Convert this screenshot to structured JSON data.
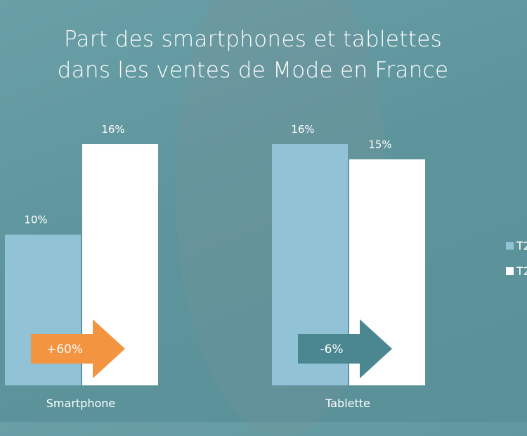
{
  "title_line1": "Part des smartphones et tablettes",
  "title_line2": "dans les ventes de Mode en France",
  "chart_data": {
    "type": "bar",
    "title": "Part des smartphones et tablettes dans les ventes de Mode en France",
    "categories": [
      "Smartphone",
      "Tablette"
    ],
    "series": [
      {
        "name": "T2",
        "color": "#92c2d6",
        "values": [
          10,
          16
        ]
      },
      {
        "name": "T2",
        "color": "#ffffff",
        "values": [
          16,
          15
        ]
      }
    ],
    "value_labels": [
      [
        "10%",
        "16%"
      ],
      [
        "16%",
        "15%"
      ]
    ],
    "annotations": [
      {
        "category": "Smartphone",
        "text": "+60%",
        "color": "#f39441"
      },
      {
        "category": "Tablette",
        "text": "-6%",
        "color": "#4a8790"
      }
    ],
    "ylim": [
      0,
      16
    ],
    "legend": "right"
  }
}
